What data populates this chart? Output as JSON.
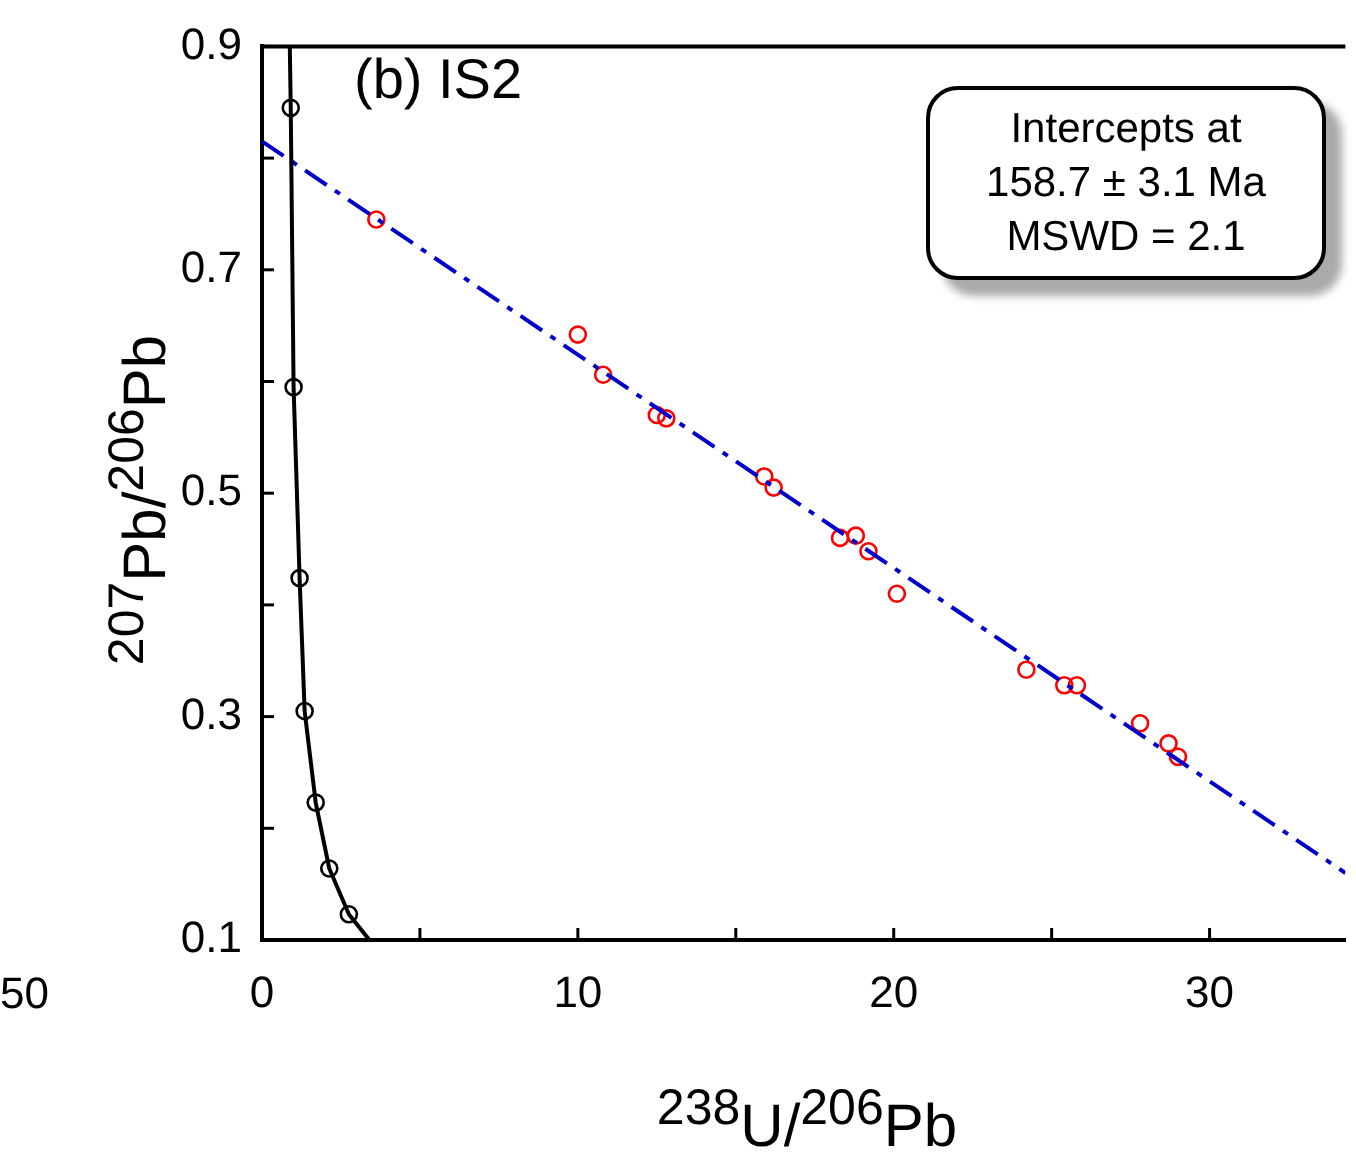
{
  "chart_data": {
    "type": "scatter",
    "xlabel": "$^{238}$U/$^{206}$Pb",
    "ylabel": "$^{207}$Pb/$^{206}$Pb",
    "annotations": [
      "(b) IS2",
      "Intercepts at",
      "158.7 ± 3.1 Ma",
      "MSWD = 2.1",
      "50"
    ],
    "xlim": [
      0,
      34.3
    ],
    "xticks": [
      0,
      {
        "value": 5,
        "label": null
      },
      10,
      {
        "value": 15,
        "label": null
      },
      20,
      {
        "value": 25,
        "label": null
      },
      30
    ],
    "ylim": [
      0.1,
      0.9
    ],
    "yticks": [
      0.1,
      {
        "value": 0.2,
        "label": null
      },
      0.3,
      {
        "value": 0.4,
        "label": null
      },
      0.5,
      {
        "value": 0.6,
        "label": null
      },
      0.7,
      {
        "value": 0.8,
        "label": null
      },
      0.9
    ],
    "grid": false,
    "legend": false,
    "series": [
      {
        "type": "line",
        "color": "#000000",
        "marker": "none",
        "line_style": "solid",
        "x": [
          0.88,
          0.91,
          1.0,
          1.19,
          1.35,
          1.7,
          2.13,
          2.75,
          3.4
        ],
        "values": [
          0.9,
          0.845,
          0.595,
          0.424,
          0.305,
          0.223,
          0.164,
          0.123,
          0.1
        ]
      },
      {
        "type": "scatter",
        "color": "#000000",
        "marker": "circle",
        "x": [
          0.91,
          1.0,
          1.19,
          1.35,
          1.7,
          2.13,
          2.75
        ],
        "values": [
          0.845,
          0.595,
          0.424,
          0.305,
          0.223,
          0.164,
          0.123
        ]
      },
      {
        "type": "line",
        "color": "#0000cc",
        "marker": "none",
        "line_style": "dashed",
        "x": [
          0,
          34.3
        ],
        "values": [
          0.815,
          0.16
        ]
      },
      {
        "type": "scatter",
        "color": "#ff0000",
        "marker": "circle",
        "x": [
          3.62,
          10.0,
          10.8,
          12.5,
          12.8,
          15.9,
          16.2,
          18.3,
          18.8,
          19.2,
          20.1,
          24.2,
          25.4,
          25.8,
          27.8,
          28.7,
          29.0
        ],
        "values": [
          0.745,
          0.642,
          0.606,
          0.57,
          0.567,
          0.515,
          0.505,
          0.46,
          0.462,
          0.448,
          0.41,
          0.342,
          0.328,
          0.328,
          0.294,
          0.276,
          0.264
        ]
      }
    ]
  }
}
